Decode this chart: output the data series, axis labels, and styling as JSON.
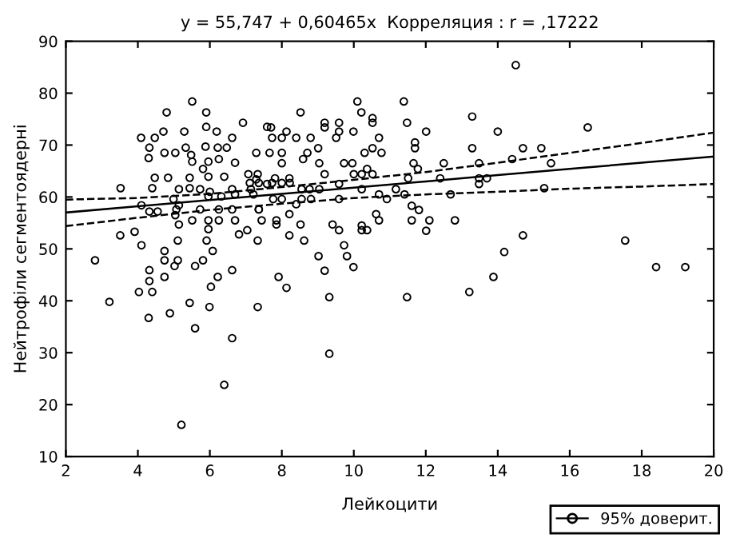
{
  "chart_data": {
    "type": "scatter",
    "title": "y = 55,747 + 0,60465x  Корреляция : r = ,17222",
    "xlabel": "Лейкоцити",
    "ylabel": "Нейтрофіли сегментоядерні",
    "xlim": [
      2,
      20
    ],
    "ylim": [
      10,
      90
    ],
    "xticks": [
      2,
      4,
      6,
      8,
      10,
      12,
      14,
      16,
      18,
      20
    ],
    "yticks": [
      10,
      20,
      30,
      40,
      50,
      60,
      70,
      80,
      90
    ],
    "grid": false,
    "legend": "bottom right",
    "series": [
      {
        "marker": "circle",
        "color": "#000000",
        "x": [
          5.51,
          4.8,
          5.9,
          6.92,
          7.59,
          4.09,
          4.47,
          4.71,
          5.29,
          5.9,
          6.19,
          6.62,
          4.32,
          4.74,
          5.04,
          5.33,
          5.48,
          5.88,
          6.22,
          6.47,
          7.29,
          7.66,
          4.3,
          5.51,
          5.96,
          6.25,
          6.7,
          5.81,
          4.47,
          4.84,
          5.44,
          5.96,
          6.4,
          7.07,
          7.29,
          3.52,
          4.4,
          5.14,
          5.44,
          5.73,
          6.0,
          6.62,
          7.14,
          7.59,
          4.99,
          5.96,
          6.32,
          6.7,
          4.1,
          5.14,
          4.32,
          4.55,
          5.07,
          5.73,
          6.25,
          6.62,
          7.36,
          5.04,
          5.51,
          5.96,
          6.25,
          6.7,
          7.44,
          5.14,
          5.96,
          6.81,
          7.04,
          3.51,
          3.91,
          5.11,
          5.91,
          7.33,
          4.1,
          4.74,
          6.08,
          2.81,
          4.74,
          5.11,
          5.81,
          5.02,
          5.59,
          6.62,
          4.32,
          4.74,
          6.22,
          4.32,
          6.03,
          4.03,
          4.4,
          3.21,
          5.44,
          5.99,
          7.33,
          4.3,
          4.89,
          5.59,
          6.62,
          6.4,
          5.21,
          10.1,
          11.39,
          8.52,
          10.21,
          10.52,
          10.52,
          9.19,
          9.59,
          11.48,
          7.7,
          8.13,
          9.19,
          9.59,
          9.99,
          12.01,
          7.73,
          8.0,
          8.4,
          8.8,
          9.51,
          10.7,
          11.7,
          9.01,
          11.7,
          8.0,
          8.71,
          10.3,
          10.52,
          10.77,
          8.59,
          8.0,
          9.04,
          9.73,
          9.96,
          11.66,
          12.5,
          10.37,
          11.78,
          7.33,
          7.81,
          8.21,
          9.19,
          10.0,
          10.22,
          10.52,
          11.51,
          12.4,
          7.11,
          7.36,
          7.73,
          8.0,
          8.22,
          9.59,
          8.55,
          8.77,
          9.04,
          10.22,
          11.17,
          7.21,
          7.76,
          8.0,
          8.55,
          8.81,
          9.59,
          10.7,
          10.92,
          11.41,
          12.69,
          7.36,
          8.4,
          11.61,
          11.81,
          8.21,
          10.62,
          7.85,
          7.85,
          8.52,
          9.41,
          10.22,
          10.7,
          11.61,
          12.1,
          12.81,
          9.59,
          10.22,
          10.37,
          12.01,
          8.21,
          8.62,
          9.73,
          9.02,
          9.81,
          9.99,
          9.19,
          7.91,
          8.13,
          9.32,
          11.48,
          9.32,
          14.5,
          13.29,
          14.0,
          16.5,
          13.29,
          14.7,
          15.21,
          14.4,
          13.48,
          15.48,
          13.48,
          13.7,
          13.48,
          15.29,
          14.7,
          17.54,
          14.18,
          18.4,
          19.21,
          13.88,
          13.21
        ],
        "values": [
          78.4,
          76.3,
          76.3,
          74.3,
          73.5,
          71.4,
          71.4,
          72.6,
          72.6,
          73.5,
          72.6,
          71.4,
          69.5,
          68.5,
          68.5,
          69.5,
          68.1,
          69.7,
          69.5,
          69.5,
          68.5,
          68.5,
          67.5,
          66.8,
          66.8,
          67.3,
          66.6,
          65.4,
          63.7,
          63.7,
          63.7,
          63.9,
          63.9,
          64.4,
          63.4,
          61.7,
          61.7,
          61.5,
          61.7,
          61.5,
          61.0,
          61.5,
          61.5,
          62.5,
          59.6,
          60.1,
          60.1,
          60.5,
          58.4,
          58.4,
          57.2,
          57.2,
          57.6,
          57.6,
          57.6,
          57.6,
          57.6,
          56.5,
          55.5,
          55.5,
          55.5,
          55.5,
          55.5,
          54.7,
          53.8,
          52.8,
          53.6,
          52.6,
          53.3,
          51.6,
          51.6,
          51.6,
          50.7,
          49.6,
          49.6,
          47.8,
          47.8,
          47.8,
          47.8,
          46.7,
          46.7,
          45.9,
          45.9,
          44.6,
          44.6,
          43.8,
          42.7,
          41.7,
          41.7,
          39.8,
          39.6,
          38.8,
          38.8,
          36.7,
          37.6,
          34.7,
          32.8,
          23.8,
          16.1,
          78.4,
          78.4,
          76.3,
          76.3,
          75.2,
          74.3,
          74.3,
          74.3,
          74.3,
          73.4,
          72.6,
          73.4,
          72.6,
          72.6,
          72.6,
          71.4,
          71.4,
          71.4,
          71.4,
          71.4,
          71.4,
          70.5,
          69.4,
          69.4,
          68.5,
          68.5,
          68.5,
          69.4,
          68.5,
          67.3,
          66.5,
          66.5,
          66.5,
          66.5,
          66.5,
          66.5,
          65.4,
          65.4,
          64.4,
          63.6,
          63.6,
          64.4,
          64.4,
          64.4,
          64.4,
          63.6,
          63.6,
          62.7,
          62.7,
          62.7,
          62.7,
          62.7,
          62.5,
          61.5,
          61.5,
          61.5,
          61.5,
          61.5,
          60.5,
          59.6,
          59.6,
          59.6,
          59.6,
          59.6,
          60.5,
          59.6,
          60.5,
          60.5,
          57.6,
          58.6,
          58.3,
          57.5,
          56.7,
          56.7,
          55.5,
          54.7,
          54.7,
          54.7,
          54.5,
          55.5,
          55.5,
          55.5,
          55.5,
          53.6,
          53.6,
          53.6,
          53.5,
          52.6,
          51.6,
          50.7,
          48.6,
          48.6,
          46.5,
          45.8,
          44.6,
          42.5,
          40.7,
          40.7,
          29.8,
          85.4,
          75.5,
          72.6,
          73.4,
          69.4,
          69.4,
          69.4,
          67.3,
          66.5,
          66.5,
          63.6,
          63.6,
          62.5,
          61.7,
          52.6,
          51.6,
          49.4,
          46.5,
          46.5,
          44.6,
          41.7
        ]
      },
      {
        "type": "line",
        "name": "95% доверит.",
        "color": "#000000",
        "line_style": "solid",
        "marker": "none",
        "x": [
          2,
          4,
          6,
          8,
          10,
          12,
          14,
          16,
          18,
          20
        ],
        "values": [
          57.0,
          58.2,
          59.4,
          60.6,
          61.8,
          63.0,
          64.2,
          65.4,
          66.6,
          67.8
        ]
      },
      {
        "type": "line",
        "color": "#000000",
        "line_style": "dashed",
        "marker": "none",
        "x": [
          2,
          4,
          6,
          8,
          10,
          12,
          14,
          16,
          18,
          20
        ],
        "values": [
          54.4,
          56.0,
          57.5,
          58.7,
          59.8,
          60.5,
          61.0,
          61.6,
          62.0,
          62.5
        ]
      },
      {
        "type": "line",
        "color": "#000000",
        "line_style": "dashed",
        "marker": "none",
        "x": [
          2,
          4,
          6,
          8,
          10,
          12,
          14,
          16,
          18,
          20
        ],
        "values": [
          59.5,
          59.8,
          60.6,
          61.9,
          63.3,
          64.8,
          66.6,
          68.5,
          70.4,
          72.4
        ]
      }
    ]
  }
}
